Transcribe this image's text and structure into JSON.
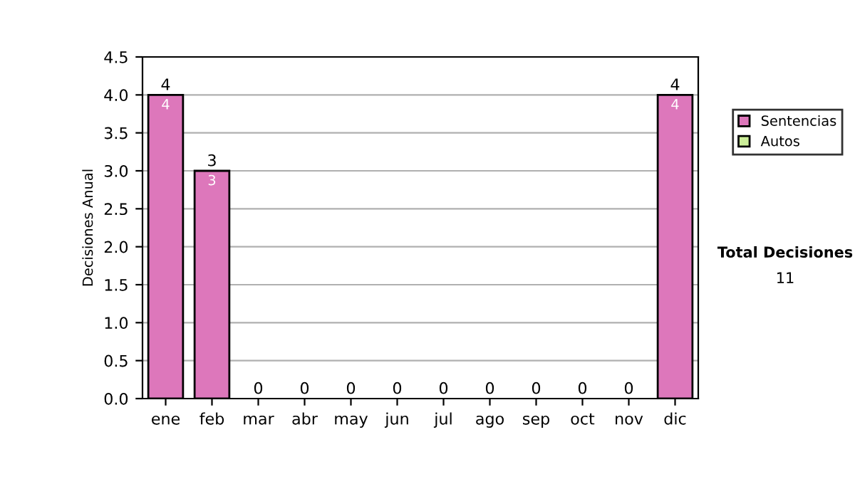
{
  "chart_data": {
    "type": "bar",
    "stacked": true,
    "ylabel": "Decisiones Anual",
    "categories": [
      "ene",
      "feb",
      "mar",
      "abr",
      "may",
      "jun",
      "jul",
      "ago",
      "sep",
      "oct",
      "nov",
      "dic"
    ],
    "series": [
      {
        "name": "Sentencias",
        "color": "#dd77bb",
        "values": [
          4,
          3,
          0,
          0,
          0,
          0,
          0,
          0,
          0,
          0,
          0,
          4
        ],
        "value_labels": [
          "4",
          "3",
          null,
          null,
          null,
          null,
          null,
          null,
          null,
          null,
          null,
          "4"
        ]
      },
      {
        "name": "Autos",
        "color": "#ccee99",
        "values": [
          0,
          0,
          0,
          0,
          0,
          0,
          0,
          0,
          0,
          0,
          0,
          0
        ]
      }
    ],
    "totals": [
      "4",
      "3",
      "0",
      "0",
      "0",
      "0",
      "0",
      "0",
      "0",
      "0",
      "0",
      "4"
    ],
    "ylim": [
      0,
      4.5
    ],
    "yticks": [
      {
        "value": 0,
        "label": "0.0"
      },
      0.5,
      {
        "value": 1,
        "label": "1.0"
      },
      1.5,
      {
        "value": 2,
        "label": "2.0"
      },
      2.5,
      {
        "value": 3,
        "label": "3.0"
      },
      3.5,
      {
        "value": 4,
        "label": "4.0"
      },
      4.5
    ],
    "grid": "y",
    "legend": "right",
    "annotations": [
      "Total Decisiones",
      "11"
    ]
  }
}
